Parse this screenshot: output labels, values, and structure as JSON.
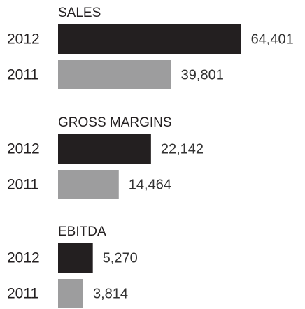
{
  "chart_data": [
    {
      "type": "bar",
      "orientation": "horizontal",
      "title": "SALES",
      "categories": [
        "2012",
        "2011"
      ],
      "values": [
        64401,
        39801
      ],
      "value_labels": [
        "64,401",
        "39,801"
      ],
      "colors": [
        "#231f20",
        "#9d9d9e"
      ],
      "xlim": [
        0,
        65000
      ]
    },
    {
      "type": "bar",
      "orientation": "horizontal",
      "title": "GROSS MARGINS",
      "categories": [
        "2012",
        "2011"
      ],
      "values": [
        22142,
        14464
      ],
      "value_labels": [
        "22,142",
        "14,464"
      ],
      "colors": [
        "#231f20",
        "#9d9d9e"
      ],
      "xlim": [
        0,
        44000
      ]
    },
    {
      "type": "bar",
      "orientation": "horizontal",
      "title": "EBITDA",
      "categories": [
        "2012",
        "2011"
      ],
      "values": [
        5270,
        3814
      ],
      "value_labels": [
        "5,270",
        "3,814"
      ],
      "colors": [
        "#231f20",
        "#9d9d9e"
      ],
      "xlim": [
        0,
        28000
      ]
    }
  ]
}
